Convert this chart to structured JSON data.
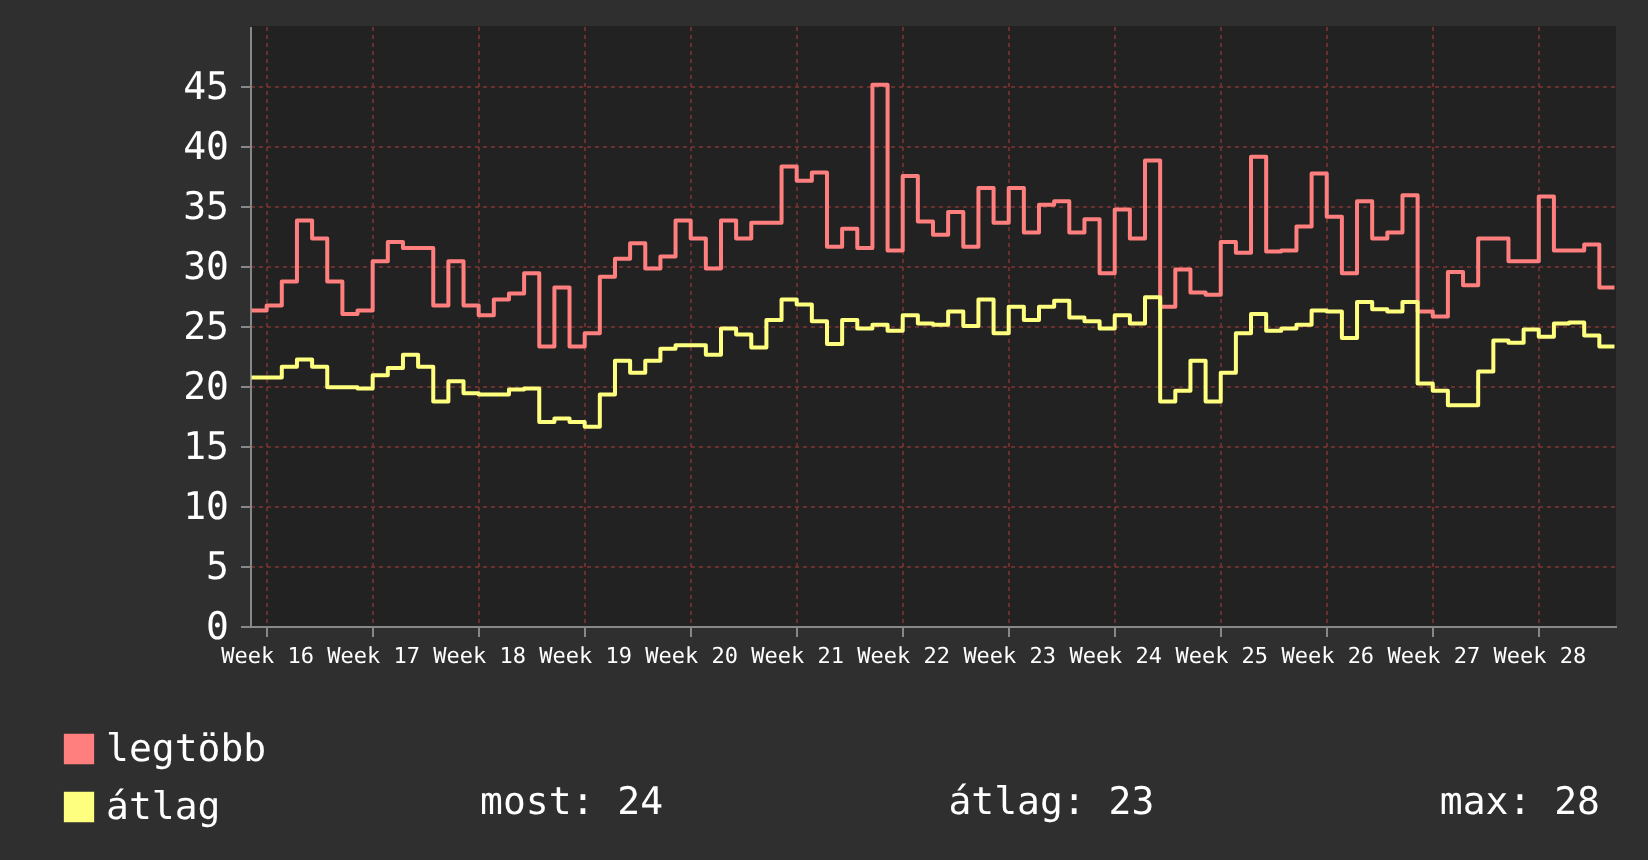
{
  "chart_data": {
    "type": "step",
    "categories": [
      null,
      "Week 16",
      null,
      null,
      null,
      null,
      null,
      null,
      "Week 17",
      null,
      null,
      null,
      null,
      null,
      null,
      "Week 18",
      null,
      null,
      null,
      null,
      null,
      null,
      "Week 19",
      null,
      null,
      null,
      null,
      null,
      null,
      "Week 20",
      null,
      null,
      null,
      null,
      null,
      null,
      "Week 21",
      null,
      null,
      null,
      null,
      null,
      null,
      "Week 22",
      null,
      null,
      null,
      null,
      null,
      null,
      "Week 23",
      null,
      null,
      null,
      null,
      null,
      null,
      "Week 24",
      null,
      null,
      null,
      null,
      null,
      null,
      "Week 25",
      null,
      null,
      null,
      null,
      null,
      null,
      "Week 26",
      null,
      null,
      null,
      null,
      null,
      null,
      "Week 27",
      null,
      null,
      null,
      null,
      null,
      null,
      "Week 28",
      null,
      null,
      null,
      null,
      null
    ],
    "series": [
      {
        "name": "legtöbb",
        "color": "#ff7f7f",
        "values": [
          26.3,
          26.7,
          28.7,
          33.8,
          32.3,
          28.7,
          26.0,
          26.3,
          30.4,
          32.0,
          31.5,
          31.5,
          26.7,
          30.4,
          26.7,
          25.9,
          27.2,
          27.7,
          29.4,
          23.3,
          28.2,
          23.3,
          24.4,
          29.1,
          30.6,
          31.9,
          29.8,
          30.8,
          33.8,
          32.3,
          29.8,
          33.8,
          32.3,
          33.6,
          33.6,
          38.3,
          37.1,
          37.8,
          31.6,
          33.1,
          31.5,
          45.1,
          31.3,
          37.5,
          33.7,
          32.6,
          34.5,
          31.6,
          36.5,
          33.6,
          36.5,
          32.8,
          35.1,
          35.4,
          32.8,
          33.9,
          29.4,
          34.7,
          32.3,
          38.8,
          26.6,
          29.7,
          27.8,
          27.6,
          32.0,
          31.1,
          39.1,
          31.2,
          31.3,
          33.3,
          37.7,
          34.1,
          29.4,
          35.4,
          32.3,
          32.8,
          35.9,
          26.2,
          25.8,
          29.5,
          28.4,
          32.3,
          32.3,
          30.4,
          30.4,
          35.8,
          31.3,
          31.3,
          31.8,
          28.2,
          28.2
        ]
      },
      {
        "name": "átlag",
        "color": "#ffff7f",
        "values": [
          20.7,
          20.7,
          21.6,
          22.2,
          21.6,
          19.9,
          19.9,
          19.8,
          20.9,
          21.5,
          22.6,
          21.6,
          18.7,
          20.4,
          19.4,
          19.3,
          19.3,
          19.7,
          19.8,
          17.0,
          17.3,
          17.0,
          16.6,
          19.3,
          22.1,
          21.1,
          22.1,
          23.1,
          23.4,
          23.4,
          22.6,
          24.8,
          24.3,
          23.2,
          25.5,
          27.2,
          26.8,
          25.4,
          23.5,
          25.5,
          24.8,
          25.1,
          24.6,
          25.9,
          25.2,
          25.1,
          26.2,
          25.0,
          27.2,
          24.4,
          26.6,
          25.5,
          26.6,
          27.1,
          25.7,
          25.4,
          24.8,
          25.9,
          25.2,
          27.4,
          18.7,
          19.6,
          22.1,
          18.7,
          21.1,
          24.4,
          26.0,
          24.6,
          24.8,
          25.1,
          26.3,
          26.2,
          24.0,
          27.0,
          26.4,
          26.2,
          27.0,
          20.2,
          19.6,
          18.4,
          18.4,
          21.2,
          23.8,
          23.6,
          24.7,
          24.1,
          25.2,
          25.3,
          24.2,
          23.3,
          23.3
        ]
      }
    ],
    "ylim": [
      0,
      50
    ],
    "yticks": [
      0,
      5,
      10,
      15,
      20,
      25,
      30,
      35,
      40,
      45
    ],
    "grid": true,
    "legend": "bottom left",
    "marker": "none",
    "line_style": "solid",
    "annotations": [
      "most: 24",
      "átlag: 23",
      "max: 28"
    ]
  }
}
